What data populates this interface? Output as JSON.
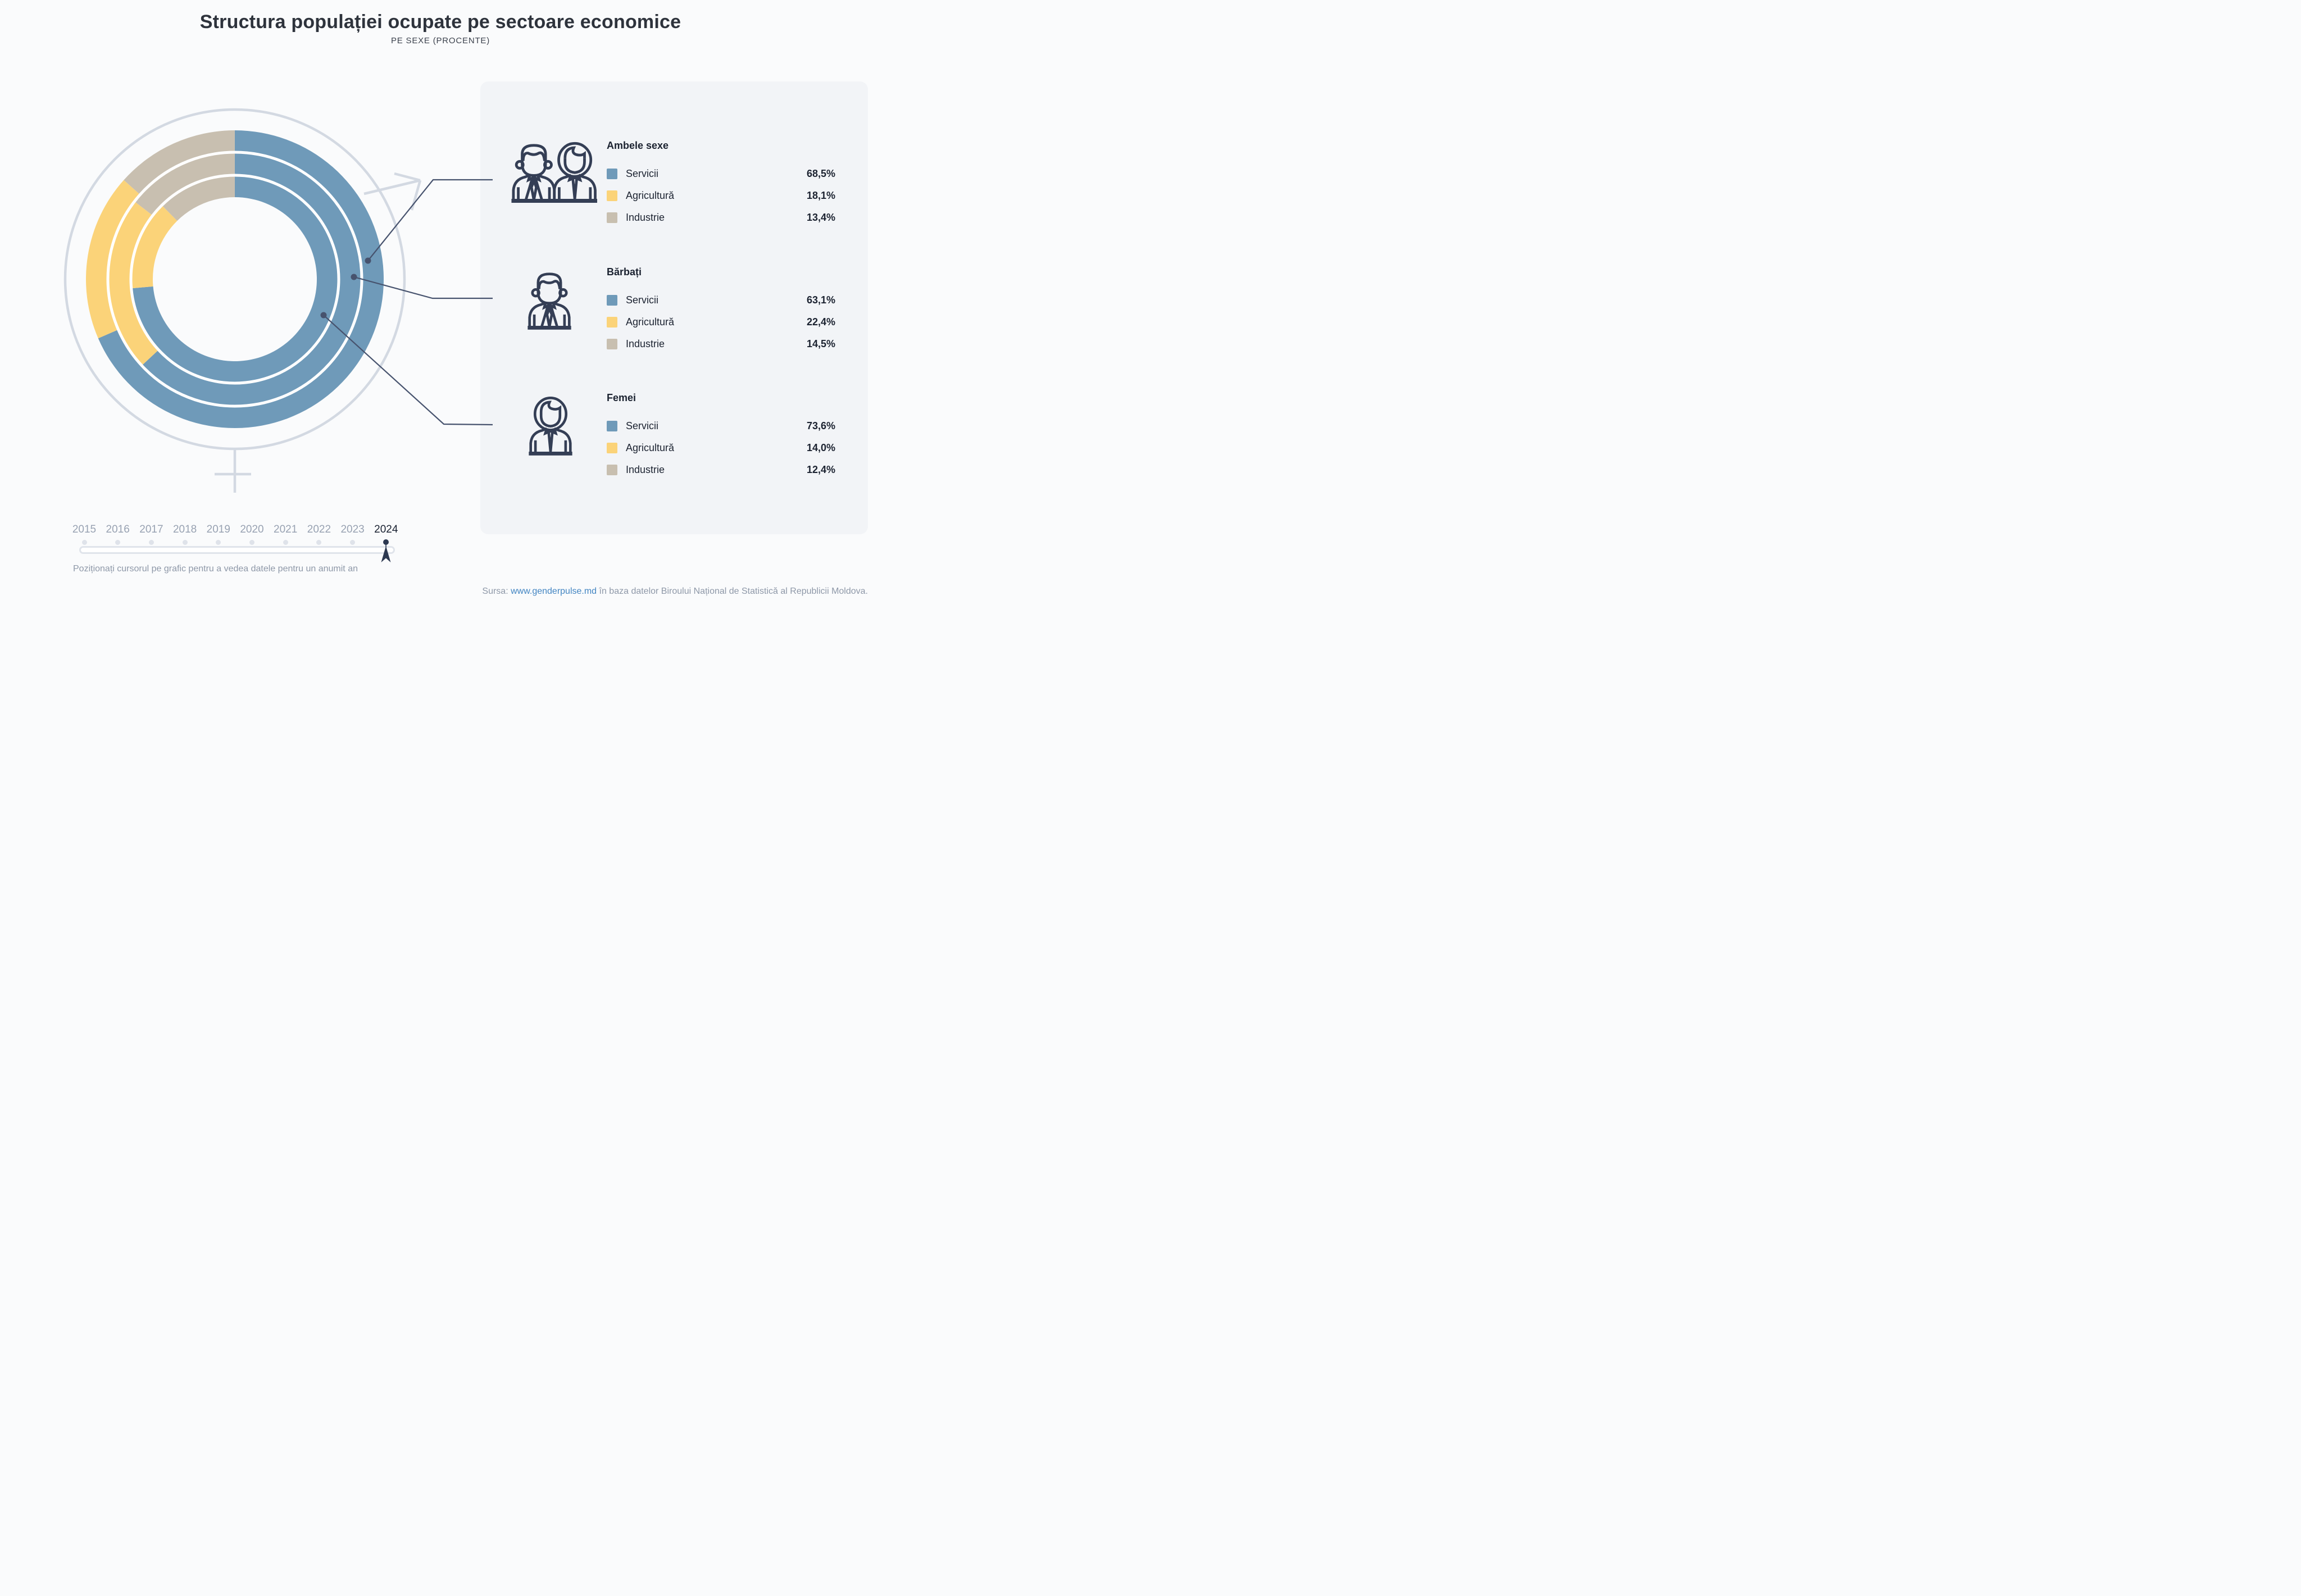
{
  "header": {
    "title": "Structura populației ocupate pe sectoare economice",
    "subtitle": "PE SEXE (PROCENTE)"
  },
  "chart_data": {
    "type": "donut",
    "unit": "percent",
    "direction": "clockwise",
    "start_angle_deg": 0,
    "sectors": [
      "Servicii",
      "Agricultură",
      "Industrie"
    ],
    "sector_colors": [
      "#6f9ab9",
      "#fbd379",
      "#c8bfb0"
    ],
    "rings": [
      {
        "group": "Ambele sexe",
        "ring": "outer",
        "values": [
          68.5,
          18.1,
          13.4
        ]
      },
      {
        "group": "Bărbați",
        "ring": "middle",
        "values": [
          63.1,
          22.4,
          14.5
        ]
      },
      {
        "group": "Femei",
        "ring": "inner",
        "values": [
          73.6,
          14.0,
          12.4
        ]
      }
    ],
    "years": [
      "2015",
      "2016",
      "2017",
      "2018",
      "2019",
      "2020",
      "2021",
      "2022",
      "2023",
      "2024"
    ],
    "selected_year": "2024"
  },
  "legend": {
    "groups": [
      {
        "title": "Ambele sexe",
        "icon": "men-women-icon",
        "rows": [
          {
            "label": "Servicii",
            "value": "68,5%",
            "color": "#6f9ab9"
          },
          {
            "label": "Agricultură",
            "value": "18,1%",
            "color": "#fbd379"
          },
          {
            "label": "Industrie",
            "value": "13,4%",
            "color": "#c8bfb0"
          }
        ]
      },
      {
        "title": "Bărbați",
        "icon": "man-icon",
        "rows": [
          {
            "label": "Servicii",
            "value": "63,1%",
            "color": "#6f9ab9"
          },
          {
            "label": "Agricultură",
            "value": "22,4%",
            "color": "#fbd379"
          },
          {
            "label": "Industrie",
            "value": "14,5%",
            "color": "#c8bfb0"
          }
        ]
      },
      {
        "title": "Femei",
        "icon": "woman-icon",
        "rows": [
          {
            "label": "Servicii",
            "value": "73,6%",
            "color": "#6f9ab9"
          },
          {
            "label": "Agricultură",
            "value": "14,0%",
            "color": "#fbd379"
          },
          {
            "label": "Industrie",
            "value": "12,4%",
            "color": "#c8bfb0"
          }
        ]
      }
    ]
  },
  "slider": {
    "years": [
      "2015",
      "2016",
      "2017",
      "2018",
      "2019",
      "2020",
      "2021",
      "2022",
      "2023",
      "2024"
    ],
    "selected_year": "2024",
    "hint": "Poziționați cursorul pe grafic pentru a vedea datele pentru un anumit an"
  },
  "source": {
    "prefix": "Sursa: ",
    "link": "www.genderpulse.md",
    "suffix": " în baza datelor Biroului Național de Statistică al Republicii Moldova."
  }
}
